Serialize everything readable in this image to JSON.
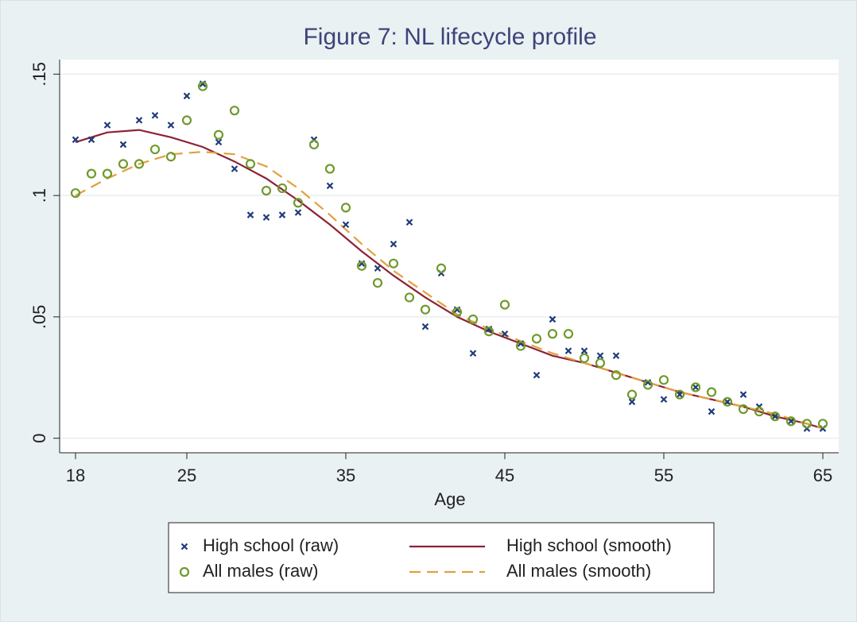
{
  "chart_data": {
    "type": "line",
    "title": "Figure 7: NL lifecycle profile",
    "x_label": "Age",
    "xlim": [
      17,
      66
    ],
    "xticks": [
      18,
      25,
      35,
      45,
      55,
      65
    ],
    "ylim": [
      -0.006,
      0.156
    ],
    "yticks": [
      0,
      {
        "value": 0.05,
        "label": ".05"
      },
      {
        "value": 0.1,
        "label": ".1"
      },
      {
        "value": 0.15,
        "label": ".15"
      }
    ],
    "grid": true,
    "legend_position": "bottom",
    "series": [
      {
        "name": "High school (raw)",
        "kind": "scatter",
        "marker": "x",
        "color": "#1f3c7a",
        "x": [
          18,
          19,
          20,
          21,
          22,
          23,
          24,
          25,
          26,
          27,
          28,
          29,
          30,
          31,
          32,
          33,
          34,
          35,
          36,
          37,
          38,
          39,
          40,
          41,
          42,
          43,
          44,
          45,
          46,
          47,
          48,
          49,
          50,
          51,
          52,
          53,
          54,
          55,
          56,
          57,
          58,
          59,
          60,
          61,
          62,
          63,
          64,
          65
        ],
        "values": [
          0.123,
          0.123,
          0.129,
          0.121,
          0.131,
          0.133,
          0.129,
          0.141,
          0.146,
          0.122,
          0.111,
          0.092,
          0.091,
          0.092,
          0.093,
          0.123,
          0.104,
          0.088,
          0.072,
          0.07,
          0.08,
          0.089,
          0.046,
          0.068,
          0.053,
          0.035,
          0.045,
          0.043,
          0.039,
          0.026,
          0.049,
          0.036,
          0.036,
          0.034,
          0.034,
          0.015,
          0.023,
          0.016,
          0.018,
          0.021,
          0.011,
          0.015,
          0.018,
          0.013,
          0.009,
          0.007,
          0.004,
          0.004
        ]
      },
      {
        "name": "All males (raw)",
        "kind": "scatter",
        "marker": "circle",
        "color": "#6f9a2c",
        "x": [
          18,
          19,
          20,
          21,
          22,
          23,
          24,
          25,
          26,
          27,
          28,
          29,
          30,
          31,
          32,
          33,
          34,
          35,
          36,
          37,
          38,
          39,
          40,
          41,
          42,
          43,
          44,
          45,
          46,
          47,
          48,
          49,
          50,
          51,
          52,
          53,
          54,
          55,
          56,
          57,
          58,
          59,
          60,
          61,
          62,
          63,
          64,
          65
        ],
        "values": [
          0.101,
          0.109,
          0.109,
          0.113,
          0.113,
          0.119,
          0.116,
          0.131,
          0.145,
          0.125,
          0.135,
          0.113,
          0.102,
          0.103,
          0.097,
          0.121,
          0.111,
          0.095,
          0.071,
          0.064,
          0.072,
          0.058,
          0.053,
          0.07,
          0.052,
          0.049,
          0.044,
          0.055,
          0.038,
          0.041,
          0.043,
          0.043,
          0.033,
          0.031,
          0.026,
          0.018,
          0.022,
          0.024,
          0.018,
          0.021,
          0.019,
          0.015,
          0.012,
          0.011,
          0.009,
          0.007,
          0.006,
          0.006
        ]
      },
      {
        "name": "High school (smooth)",
        "kind": "line",
        "dash": "solid",
        "color": "#8e2236",
        "x": [
          18,
          20,
          22,
          24,
          26,
          28,
          30,
          32,
          34,
          36,
          38,
          40,
          42,
          44,
          46,
          48,
          50,
          52,
          54,
          56,
          58,
          60,
          62,
          64,
          65
        ],
        "values": [
          0.122,
          0.126,
          0.127,
          0.124,
          0.12,
          0.114,
          0.107,
          0.098,
          0.088,
          0.077,
          0.067,
          0.058,
          0.05,
          0.044,
          0.039,
          0.034,
          0.031,
          0.027,
          0.023,
          0.019,
          0.016,
          0.013,
          0.009,
          0.006,
          0.004
        ]
      },
      {
        "name": "All males (smooth)",
        "kind": "line",
        "dash": "dashed",
        "color": "#e2a03e",
        "x": [
          18,
          20,
          22,
          24,
          26,
          28,
          30,
          32,
          34,
          36,
          38,
          40,
          42,
          44,
          46,
          48,
          50,
          52,
          54,
          56,
          58,
          60,
          62,
          64,
          65
        ],
        "values": [
          0.1,
          0.107,
          0.113,
          0.117,
          0.118,
          0.117,
          0.112,
          0.103,
          0.092,
          0.08,
          0.069,
          0.06,
          0.051,
          0.045,
          0.04,
          0.035,
          0.031,
          0.027,
          0.023,
          0.019,
          0.016,
          0.013,
          0.01,
          0.006,
          0.004
        ]
      }
    ]
  }
}
